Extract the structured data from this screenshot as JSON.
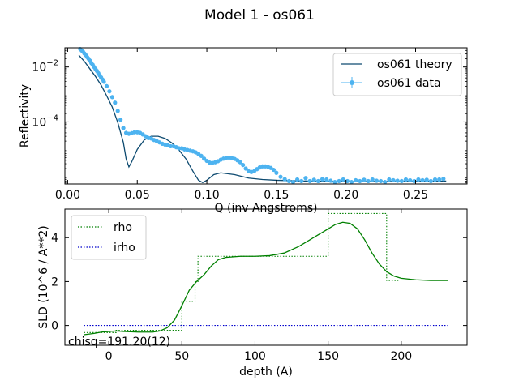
{
  "figure": {
    "title": "Model 1 - os061"
  },
  "annotation": {
    "chisq": "chisq=191.20(12)"
  },
  "chart_data": [
    {
      "type": "line",
      "xlabel": "Q (inv Angstroms)",
      "ylabel": "Reflectivity",
      "yscale": "log",
      "xlim": [
        -0.002,
        0.287
      ],
      "ylim": [
        5.5e-07,
        0.05
      ],
      "xticks": [
        {
          "value": 0.0,
          "label": "0.00"
        },
        {
          "value": 0.05,
          "label": "0.05"
        },
        {
          "value": 0.1,
          "label": "0.10"
        },
        {
          "value": 0.15,
          "label": "0.15"
        },
        {
          "value": 0.2,
          "label": "0.20"
        },
        {
          "value": 0.25,
          "label": "0.25"
        }
      ],
      "yticks": [
        {
          "value": 0.01,
          "base": "10",
          "exp": "−2"
        },
        {
          "value": 0.0001,
          "base": "10",
          "exp": "−4"
        }
      ],
      "legend": {
        "position": "top-right"
      },
      "series": [
        {
          "name": "os061 theory",
          "color": "#0d4a70",
          "style": "line",
          "x": [
            0.008,
            0.012,
            0.016,
            0.02,
            0.024,
            0.028,
            0.032,
            0.036,
            0.04,
            0.042,
            0.044,
            0.046,
            0.05,
            0.055,
            0.06,
            0.065,
            0.07,
            0.075,
            0.08,
            0.085,
            0.09,
            0.094,
            0.097,
            0.1,
            0.105,
            0.11,
            0.12,
            0.13,
            0.14,
            0.15,
            0.17,
            0.2,
            0.23,
            0.272
          ],
          "y": [
            0.027,
            0.016,
            0.0085,
            0.0045,
            0.0022,
            0.0009,
            0.00035,
            9.5e-05,
            1.8e-05,
            4.5e-06,
            2.3e-06,
            3.5e-06,
            1e-05,
            2.2e-05,
            3e-05,
            3e-05,
            2.5e-05,
            1.7e-05,
            9.5e-06,
            4.5e-06,
            1.6e-06,
            7.5e-07,
            6.2e-07,
            7.5e-07,
            1.2e-06,
            1.4e-06,
            1.2e-06,
            9e-07,
            8e-07,
            7.5e-07,
            7e-07,
            6.8e-07,
            6.8e-07,
            7e-07
          ]
        },
        {
          "name": "os061 data",
          "color": "#4db3f0",
          "style": "points",
          "x": [
            0.009,
            0.01,
            0.011,
            0.012,
            0.013,
            0.014,
            0.015,
            0.016,
            0.017,
            0.018,
            0.019,
            0.02,
            0.021,
            0.022,
            0.023,
            0.024,
            0.025,
            0.026,
            0.028,
            0.03,
            0.032,
            0.034,
            0.036,
            0.038,
            0.04,
            0.042,
            0.044,
            0.046,
            0.048,
            0.05,
            0.052,
            0.054,
            0.056,
            0.058,
            0.06,
            0.062,
            0.064,
            0.066,
            0.068,
            0.07,
            0.072,
            0.074,
            0.076,
            0.078,
            0.08,
            0.082,
            0.084,
            0.086,
            0.088,
            0.09,
            0.092,
            0.094,
            0.096,
            0.098,
            0.1,
            0.102,
            0.104,
            0.106,
            0.108,
            0.11,
            0.112,
            0.114,
            0.116,
            0.118,
            0.12,
            0.122,
            0.124,
            0.126,
            0.128,
            0.13,
            0.132,
            0.134,
            0.136,
            0.138,
            0.14,
            0.142,
            0.144,
            0.146,
            0.148,
            0.15,
            0.153,
            0.156,
            0.159,
            0.162,
            0.165,
            0.168,
            0.171,
            0.174,
            0.177,
            0.18,
            0.183,
            0.186,
            0.189,
            0.192,
            0.195,
            0.198,
            0.201,
            0.204,
            0.207,
            0.21,
            0.213,
            0.216,
            0.219,
            0.222,
            0.225,
            0.228,
            0.231,
            0.234,
            0.237,
            0.24,
            0.243,
            0.246,
            0.249,
            0.252,
            0.255,
            0.258,
            0.261,
            0.264,
            0.267,
            0.27
          ],
          "y": [
            0.045,
            0.04,
            0.036,
            0.031,
            0.027,
            0.023,
            0.02,
            0.017,
            0.014,
            0.012,
            0.01,
            0.0085,
            0.0072,
            0.006,
            0.005,
            0.0042,
            0.0035,
            0.0029,
            0.002,
            0.0013,
            0.0008,
            0.0005,
            0.00025,
            0.00012,
            6e-05,
            4e-05,
            3.7e-05,
            3.9e-05,
            4.2e-05,
            4.2e-05,
            4e-05,
            3.5e-05,
            3e-05,
            2.6e-05,
            2.5e-05,
            2.2e-05,
            2e-05,
            1.8e-05,
            1.6e-05,
            1.5e-05,
            1.4e-05,
            1.3e-05,
            1.3e-05,
            1.2e-05,
            1.1e-05,
            1.1e-05,
            1e-05,
            9.5e-06,
            9e-06,
            8.5e-06,
            7.8e-06,
            6.8e-06,
            5.8e-06,
            4.6e-06,
            3.8e-06,
            3.3e-06,
            3.2e-06,
            3.4e-06,
            3.7e-06,
            4.2e-06,
            4.6e-06,
            4.9e-06,
            5e-06,
            4.8e-06,
            4.5e-06,
            4e-06,
            3.4e-06,
            2.7e-06,
            2e-06,
            1.6e-06,
            1.5e-06,
            1.6e-06,
            1.9e-06,
            2.2e-06,
            2.4e-06,
            2.4e-06,
            2.3e-06,
            2.1e-06,
            1.8e-06,
            1.4e-06,
            1e-06,
            8.2e-07,
            7e-07,
            6.5e-07,
            8e-07,
            7e-07,
            9e-07,
            7e-07,
            7.8e-07,
            7e-07,
            8.2e-07,
            8e-07,
            7.2e-07,
            6.5e-07,
            7e-07,
            8e-07,
            7e-07,
            6.5e-07,
            7.5e-07,
            7e-07,
            7.8e-07,
            7e-07,
            8e-07,
            7.2e-07,
            7e-07,
            6.5e-07,
            8e-07,
            7.5e-07,
            7.2e-07,
            7e-07,
            8e-07,
            7.5e-07,
            7e-07,
            8e-07,
            7.5e-07,
            7.8e-07,
            7e-07,
            8e-07,
            8e-07,
            8.5e-07
          ]
        }
      ]
    },
    {
      "type": "line",
      "xlabel": "depth (A)",
      "ylabel": "SLD (10^6 / A**2)",
      "xlim": [
        -30,
        245
      ],
      "ylim": [
        -0.9,
        5.3
      ],
      "xticks": [
        {
          "value": 0,
          "label": "0"
        },
        {
          "value": 50,
          "label": "50"
        },
        {
          "value": 100,
          "label": "100"
        },
        {
          "value": 150,
          "label": "150"
        },
        {
          "value": 200,
          "label": "200"
        }
      ],
      "yticks": [
        {
          "value": 0,
          "label": "0"
        },
        {
          "value": 2,
          "label": "2"
        },
        {
          "value": 4,
          "label": "4"
        }
      ],
      "legend": {
        "position": "top-left"
      },
      "series": [
        {
          "name": "rho",
          "color": "#008000",
          "style": "dotted",
          "x": [
            -17,
            5,
            5,
            50,
            50,
            59,
            59,
            61,
            61,
            150,
            150,
            190,
            190,
            198
          ],
          "y": [
            -0.32,
            -0.32,
            -0.22,
            -0.22,
            1.1,
            1.1,
            2.0,
            2.0,
            3.15,
            3.15,
            5.1,
            5.1,
            2.05,
            2.05
          ]
        },
        {
          "name": "irho",
          "color": "#0000cc",
          "style": "dotted",
          "x": [
            -17,
            232
          ],
          "y": [
            0.0,
            0.0
          ]
        },
        {
          "name": "rho (profile)",
          "color": "#008000",
          "style": "line",
          "x": [
            -17,
            -10,
            -5,
            0,
            5,
            10,
            20,
            30,
            35,
            40,
            45,
            50,
            55,
            60,
            65,
            70,
            75,
            80,
            90,
            100,
            110,
            120,
            130,
            140,
            150,
            155,
            160,
            165,
            170,
            175,
            180,
            185,
            190,
            195,
            200,
            210,
            220,
            232
          ],
          "y": [
            -0.42,
            -0.36,
            -0.3,
            -0.27,
            -0.25,
            -0.27,
            -0.3,
            -0.3,
            -0.25,
            -0.1,
            0.25,
            0.9,
            1.6,
            2.0,
            2.3,
            2.7,
            3.0,
            3.1,
            3.15,
            3.15,
            3.18,
            3.3,
            3.6,
            4.0,
            4.4,
            4.6,
            4.7,
            4.65,
            4.4,
            3.9,
            3.3,
            2.8,
            2.45,
            2.25,
            2.15,
            2.08,
            2.05,
            2.05
          ]
        }
      ]
    }
  ]
}
